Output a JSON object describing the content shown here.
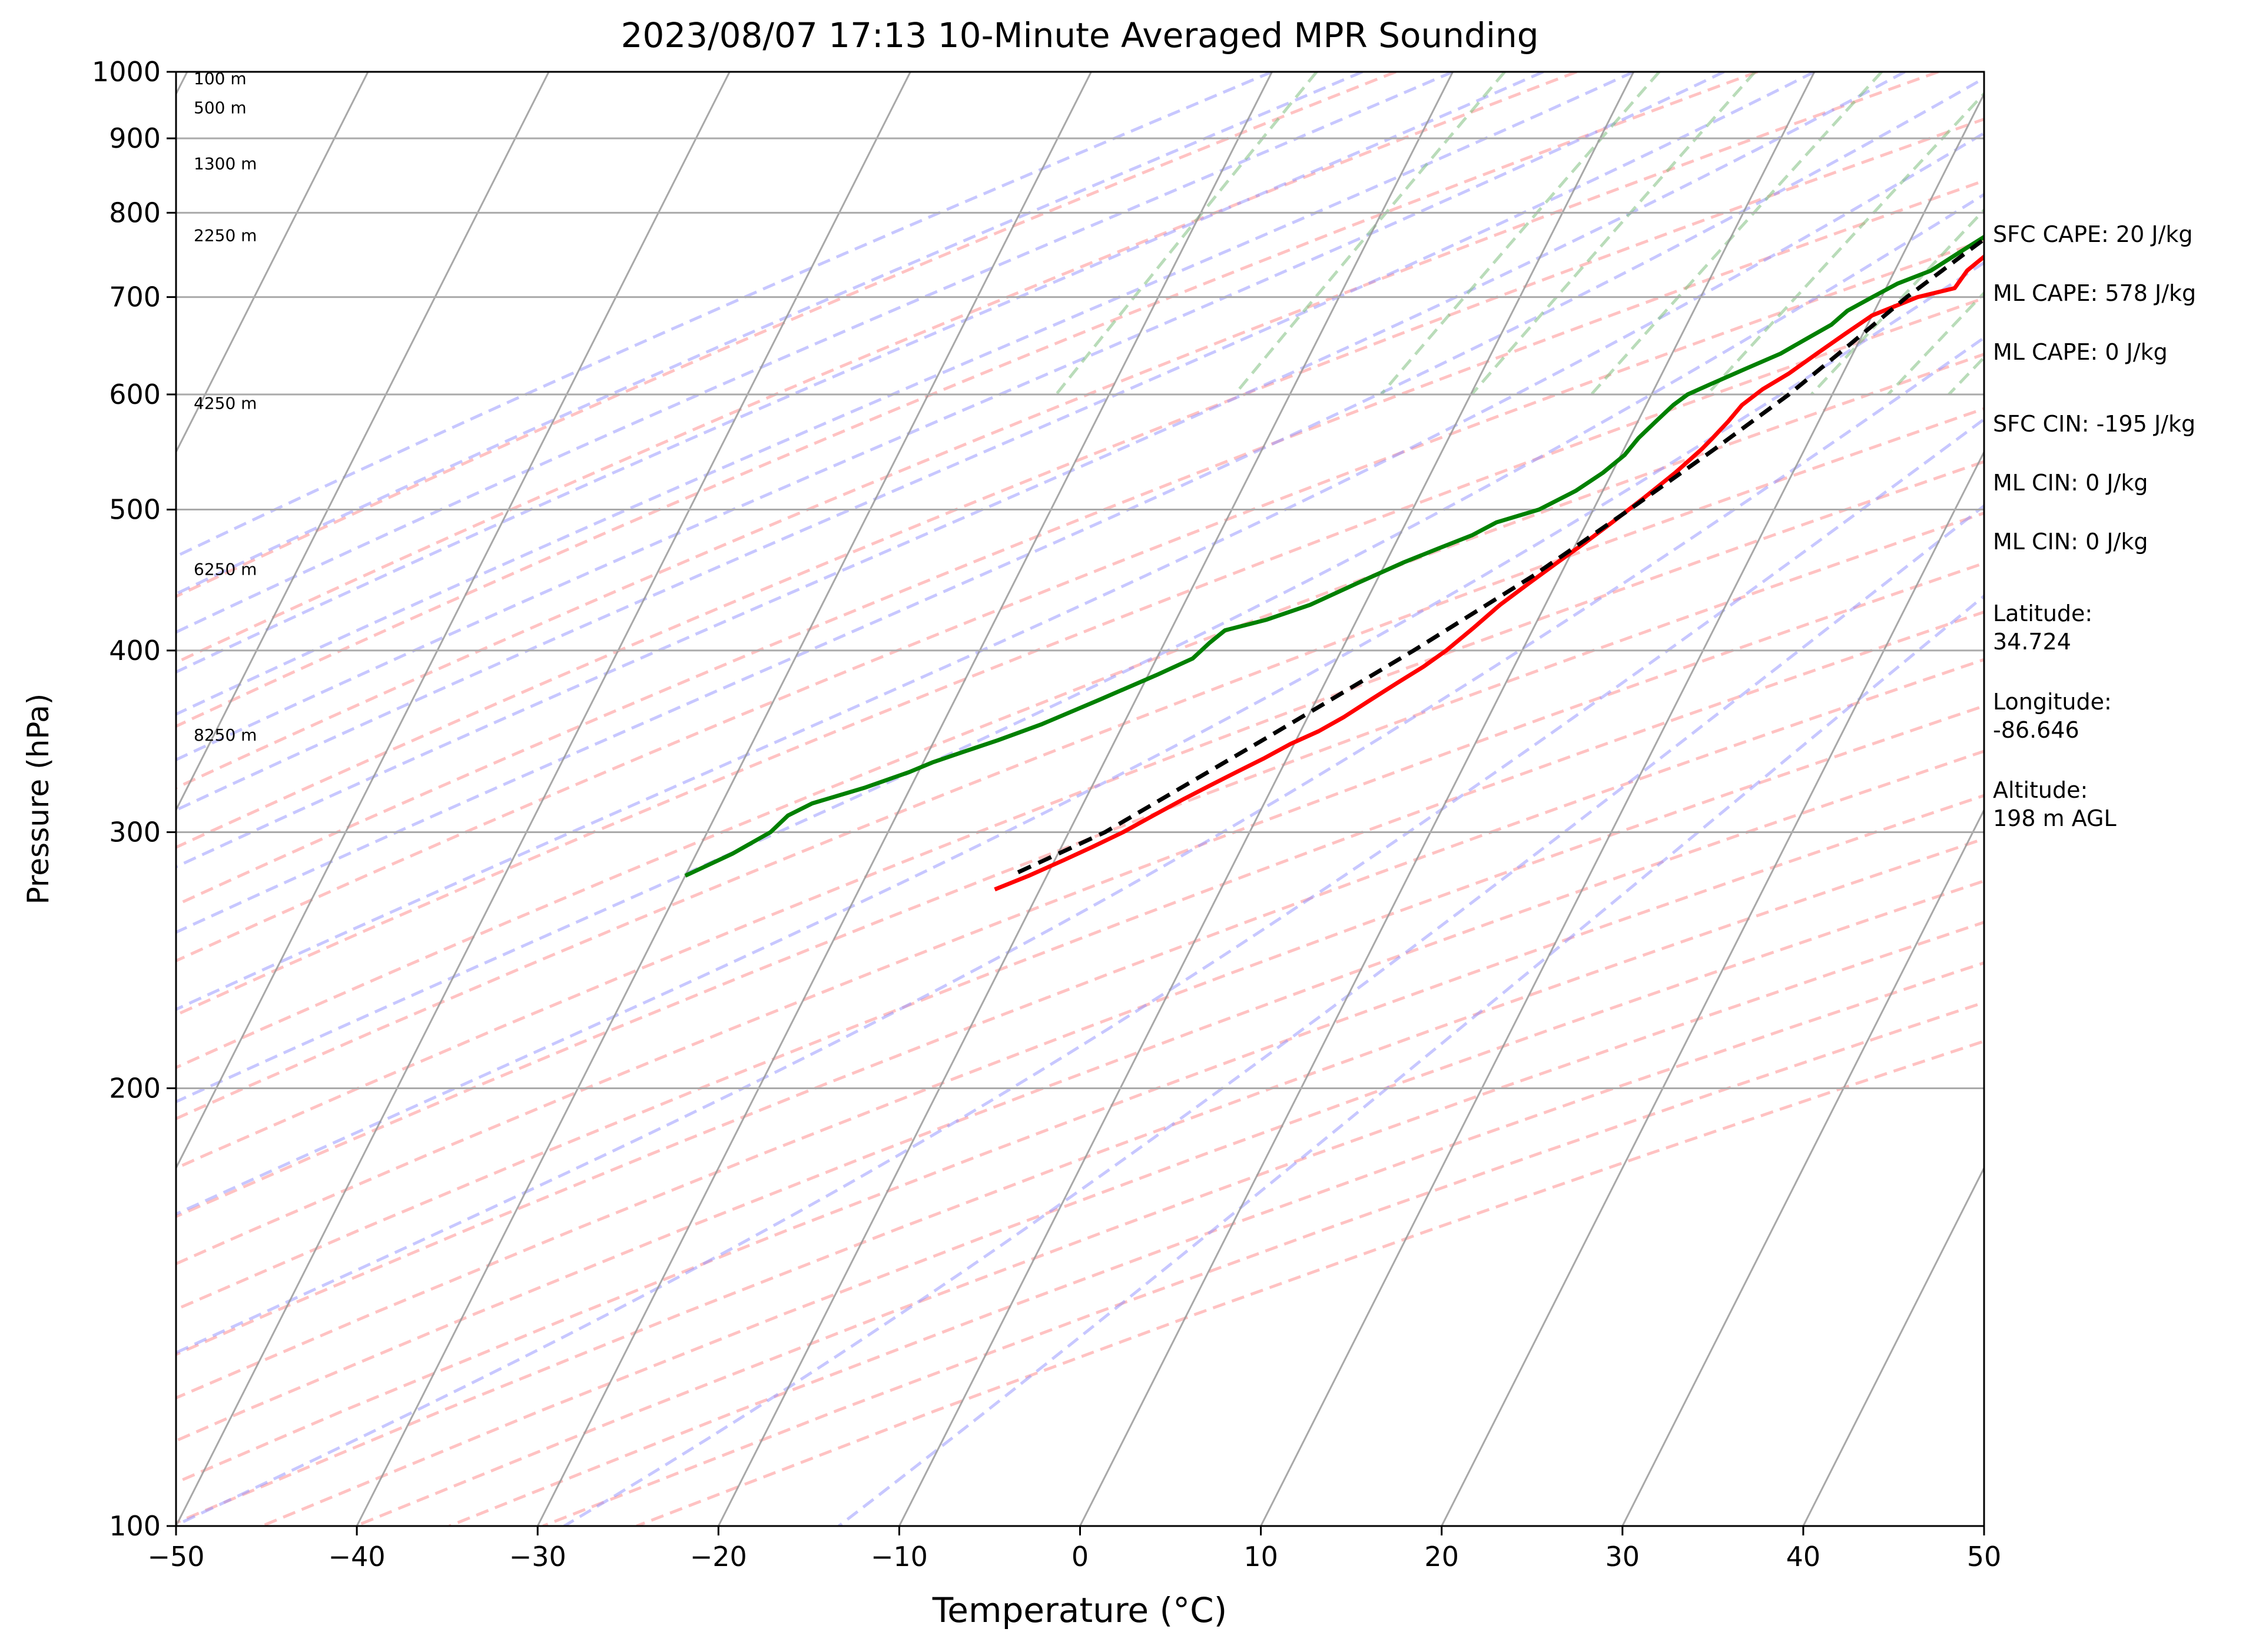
{
  "chart_data": {
    "type": "line",
    "title": "2023/08/07 17:13 10-Minute Averaged MPR Sounding",
    "xlabel": "Temperature (°C)",
    "ylabel": "Pressure (hPa)",
    "xlim": [
      -50,
      50
    ],
    "ylim": [
      1000,
      100
    ],
    "y_scale": "log",
    "skew": true,
    "grid": true,
    "x_ticks": [
      "−50",
      "−40",
      "−30",
      "−20",
      "−10",
      "0",
      "10",
      "20",
      "30",
      "40",
      "50"
    ],
    "y_ticks": [
      "1000",
      "900",
      "800",
      "700",
      "600",
      "500",
      "400",
      "300",
      "200",
      "100"
    ],
    "height_labels": [
      {
        "label": "100 m",
        "pressure": 990
      },
      {
        "label": "500 m",
        "pressure": 945
      },
      {
        "label": "1300 m",
        "pressure": 865
      },
      {
        "label": "2250 m",
        "pressure": 772
      },
      {
        "label": "4250 m",
        "pressure": 592
      },
      {
        "label": "6250 m",
        "pressure": 455
      },
      {
        "label": "8250 m",
        "pressure": 350
      }
    ],
    "series": [
      {
        "role": "temperature",
        "color": "#ff0000",
        "points": [
          [
            24.0,
            990
          ],
          [
            24.8,
            980
          ],
          [
            25.2,
            965
          ],
          [
            25.0,
            950
          ],
          [
            23.5,
            925
          ],
          [
            22.0,
            900
          ],
          [
            20.5,
            880
          ],
          [
            19.5,
            860
          ],
          [
            19.5,
            850
          ],
          [
            18.5,
            830
          ],
          [
            17.8,
            800
          ],
          [
            16.5,
            780
          ],
          [
            15.0,
            760
          ],
          [
            14.0,
            730
          ],
          [
            13.8,
            710
          ],
          [
            12.0,
            700
          ],
          [
            10.0,
            680
          ],
          [
            9.0,
            660
          ],
          [
            8.0,
            640
          ],
          [
            7.0,
            620
          ],
          [
            6.0,
            605
          ],
          [
            5.3,
            590
          ],
          [
            5.0,
            575
          ],
          [
            4.6,
            560
          ],
          [
            4.3,
            550
          ],
          [
            3.5,
            530
          ],
          [
            2.5,
            510
          ],
          [
            1.4,
            490
          ],
          [
            0.5,
            475
          ],
          [
            -0.5,
            460
          ],
          [
            -1.5,
            445
          ],
          [
            -2.5,
            430
          ],
          [
            -3.3,
            415
          ],
          [
            -4.2,
            400
          ],
          [
            -5.0,
            390
          ],
          [
            -6.0,
            380
          ],
          [
            -7.0,
            370
          ],
          [
            -8.0,
            360
          ],
          [
            -9.0,
            352
          ],
          [
            -10.2,
            345
          ],
          [
            -11.3,
            337
          ],
          [
            -12.4,
            330
          ],
          [
            -13.5,
            323
          ],
          [
            -14.6,
            316
          ],
          [
            -15.8,
            308
          ],
          [
            -17.0,
            300
          ],
          [
            -18.3,
            293
          ],
          [
            -19.5,
            287
          ],
          [
            -21.0,
            280
          ],
          [
            -22.5,
            274
          ]
        ]
      },
      {
        "role": "dewpoint",
        "color": "#008000",
        "points": [
          [
            20.0,
            995
          ],
          [
            23.0,
            985
          ],
          [
            22.5,
            970
          ],
          [
            21.0,
            955
          ],
          [
            20.5,
            945
          ],
          [
            20.5,
            935
          ],
          [
            21.0,
            925
          ],
          [
            21.0,
            920
          ],
          [
            20.5,
            915
          ],
          [
            19.5,
            900
          ],
          [
            19.0,
            880
          ],
          [
            18.0,
            860
          ],
          [
            17.5,
            850
          ],
          [
            17.0,
            835
          ],
          [
            16.8,
            820
          ],
          [
            16.0,
            805
          ],
          [
            15.0,
            790
          ],
          [
            14.0,
            770
          ],
          [
            13.0,
            750
          ],
          [
            12.0,
            730
          ],
          [
            10.5,
            715
          ],
          [
            9.5,
            700
          ],
          [
            8.5,
            685
          ],
          [
            8.0,
            670
          ],
          [
            7.0,
            655
          ],
          [
            6.0,
            640
          ],
          [
            4.5,
            625
          ],
          [
            3.0,
            610
          ],
          [
            2.0,
            600
          ],
          [
            1.5,
            590
          ],
          [
            1.0,
            575
          ],
          [
            0.5,
            560
          ],
          [
            0.2,
            545
          ],
          [
            -0.5,
            530
          ],
          [
            -1.5,
            515
          ],
          [
            -3.0,
            500
          ],
          [
            -5.0,
            490
          ],
          [
            -6.0,
            480
          ],
          [
            -7.5,
            470
          ],
          [
            -9.0,
            460
          ],
          [
            -11.0,
            445
          ],
          [
            -13.0,
            430
          ],
          [
            -15.0,
            420
          ],
          [
            -17.0,
            413
          ],
          [
            -17.5,
            405
          ],
          [
            -18.0,
            395
          ],
          [
            -19.5,
            385
          ],
          [
            -22.0,
            370
          ],
          [
            -24.5,
            356
          ],
          [
            -26.5,
            347
          ],
          [
            -28.0,
            341
          ],
          [
            -29.5,
            335
          ],
          [
            -30.5,
            330
          ],
          [
            -32.5,
            322
          ],
          [
            -35.0,
            314
          ],
          [
            -36.0,
            308
          ],
          [
            -36.5,
            300
          ],
          [
            -38.0,
            290
          ],
          [
            -40.0,
            280
          ]
        ]
      },
      {
        "role": "parcel",
        "color": "#000000",
        "points": [
          [
            24.0,
            990
          ],
          [
            22.0,
            970
          ],
          [
            20.5,
            955
          ],
          [
            20.3,
            940
          ],
          [
            19.0,
            900
          ],
          [
            17.2,
            850
          ],
          [
            15.3,
            800
          ],
          [
            13.4,
            750
          ],
          [
            11.4,
            700
          ],
          [
            9.6,
            650
          ],
          [
            7.6,
            600
          ],
          [
            5.0,
            550
          ],
          [
            2.0,
            500
          ],
          [
            -1.5,
            450
          ],
          [
            -6.0,
            400
          ],
          [
            -11.5,
            350
          ],
          [
            -18.0,
            300
          ],
          [
            -22.0,
            280
          ]
        ]
      }
    ]
  },
  "info": {
    "sfc_cape": "SFC CAPE: 20 J/kg",
    "ml_cape_1": "ML CAPE: 578 J/kg",
    "ml_cape_2": "ML CAPE: 0 J/kg",
    "sfc_cin": "SFC CIN: -195 J/kg",
    "ml_cin_1": "ML CIN: 0 J/kg",
    "ml_cin_2": "ML CIN: 0 J/kg",
    "latitude": "Latitude:\n34.724",
    "longitude": "Longitude:\n-86.646",
    "altitude": "Altitude:\n198 m AGL"
  }
}
